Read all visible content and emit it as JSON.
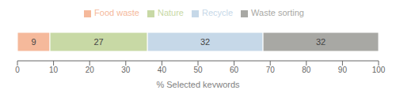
{
  "chart_data": {
    "type": "bar",
    "orientation": "horizontal",
    "stacked": true,
    "categories": [
      null
    ],
    "series": [
      {
        "name": "Food waste",
        "color": "#f5b99b",
        "values": [
          9
        ]
      },
      {
        "name": "Nature",
        "color": "#c8d9a5",
        "values": [
          27
        ]
      },
      {
        "name": "Recycle",
        "color": "#c6d8e8",
        "values": [
          32
        ]
      },
      {
        "name": "Waste sorting",
        "color": "#a8a8a4",
        "values": [
          32
        ]
      }
    ],
    "xlabel": "% Selected keywords",
    "xlim": [
      0,
      100
    ],
    "xticks": [
      0,
      10,
      20,
      30,
      40,
      50,
      60,
      70,
      80,
      90,
      100
    ],
    "data_labels": true,
    "tick_labels": "x",
    "legend": "top",
    "grid": false
  }
}
